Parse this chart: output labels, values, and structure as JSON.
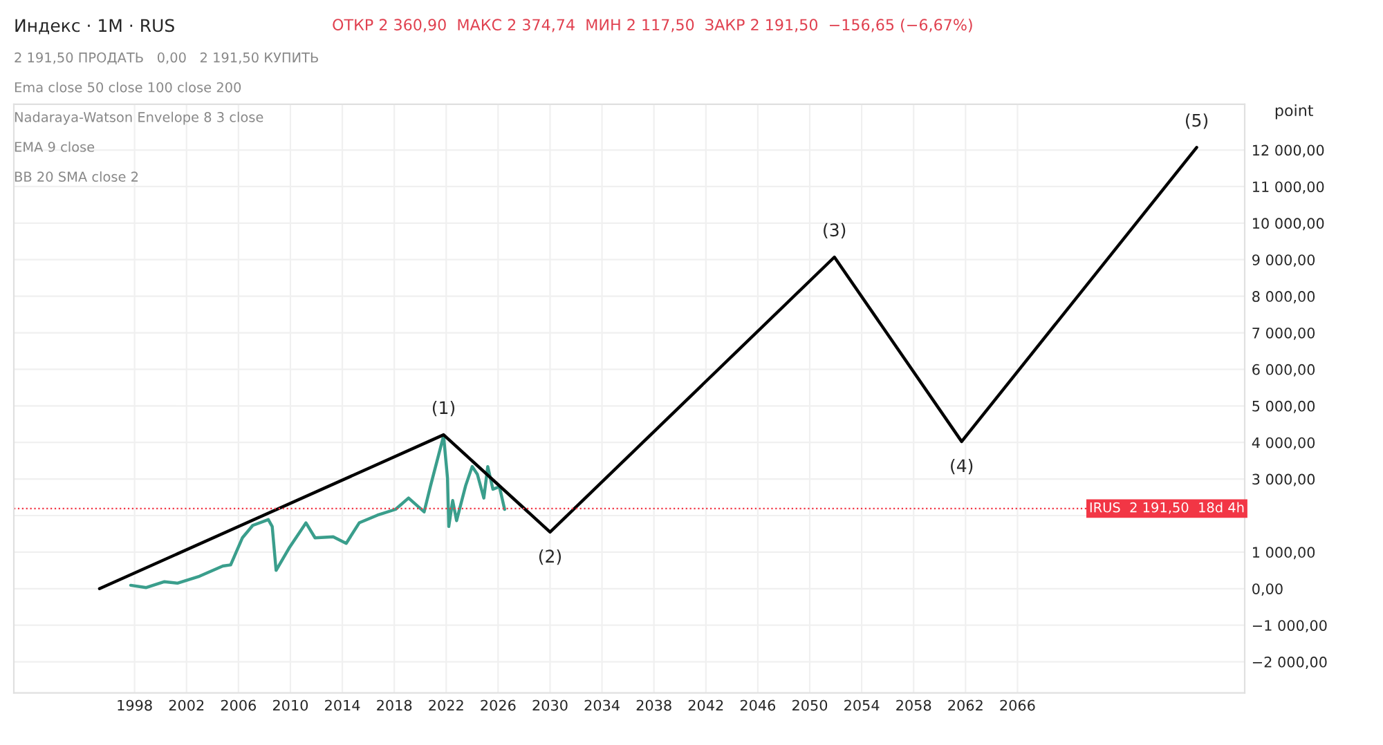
{
  "chart_data": {
    "type": "line",
    "title": "Индекс · 1M · RUS",
    "subtitle": "ОТКР 2 360,90  МАКС 2 374,74  МИН 2 117,50  ЗАКР 2 191,50  −156,65 (−6,67%)",
    "ylabel": "point",
    "annotations": [
      "2 191,50 ПРОДАТЬ   0,00   2 191,50 КУПИТЬ",
      "Ema close 50 close 100 close 200",
      "Nadaraya-Watson Envelope 8 3 close",
      "EMA 9 close",
      "BB 20 SMA close 2",
      {
        "text": "(1)",
        "x": 2021.8,
        "y": 4210
      },
      {
        "text": "(2)",
        "x": 2030.0,
        "y": 1548
      },
      {
        "text": "(3)",
        "x": 2051.9,
        "y": 9070
      },
      {
        "text": "(4)",
        "x": 2061.7,
        "y": 4025
      },
      {
        "text": "(5)",
        "x": 2079.8,
        "y": 12070
      }
    ],
    "series": [
      {
        "color": "#3a9e8c",
        "x": [
          1997.7,
          1998.9,
          2000.3,
          2001.3,
          2003.0,
          2004.8,
          2005.4,
          2006.3,
          2007.1,
          2008.3,
          2008.6,
          2008.9,
          2009.9,
          2011.2,
          2011.9,
          2013.3,
          2014.3,
          2015.3,
          2016.7,
          2018.1,
          2019.1,
          2020.3,
          2020.8,
          2021.8,
          2022.1,
          2022.2,
          2022.5,
          2022.8,
          2023.5,
          2024.0,
          2024.4,
          2024.9,
          2025.2,
          2025.6,
          2026.1,
          2026.5
        ],
        "values": [
          93,
          30,
          190,
          150,
          340,
          620,
          650,
          1390,
          1730,
          1890,
          1700,
          500,
          1110,
          1800,
          1390,
          1420,
          1240,
          1800,
          2010,
          2170,
          2480,
          2100,
          2820,
          4180,
          3030,
          1700,
          2410,
          1860,
          2820,
          3340,
          3130,
          2480,
          3340,
          2720,
          2790,
          2170
        ]
      },
      {
        "color": "#000000",
        "x": [
          1995.3,
          2021.8,
          2030.0,
          2051.9,
          2061.7,
          2079.8
        ],
        "values": [
          0,
          4210,
          1548,
          9070,
          4025,
          12070
        ]
      }
    ],
    "xlim": [
      1988.7,
      2083.5
    ],
    "ylim": [
      -2850,
      13250
    ],
    "xticks": [
      1998,
      2002,
      2006,
      2010,
      2014,
      2018,
      2022,
      2026,
      2030,
      2034,
      2038,
      2042,
      2046,
      2050,
      2054,
      2058,
      2062,
      2066
    ],
    "yticks": [
      {
        "value": -2000,
        "label": "−2 000,00"
      },
      {
        "value": -1000,
        "label": "−1 000,00"
      },
      {
        "value": 0,
        "label": "0,00"
      },
      {
        "value": 1000,
        "label": "1 000,00"
      },
      {
        "value": 2000,
        "label": null
      },
      {
        "value": 3000,
        "label": "3 000,00"
      },
      {
        "value": 4000,
        "label": "4 000,00"
      },
      {
        "value": 5000,
        "label": "5 000,00"
      },
      {
        "value": 6000,
        "label": "6 000,00"
      },
      {
        "value": 7000,
        "label": "7 000,00"
      },
      {
        "value": 8000,
        "label": "8 000,00"
      },
      {
        "value": 9000,
        "label": "9 000,00"
      },
      {
        "value": 10000,
        "label": "10 000,00"
      },
      {
        "value": 11000,
        "label": "11 000,00"
      },
      {
        "value": 12000,
        "label": "12 000,00"
      }
    ],
    "ref_lines": [
      {
        "axis": "y",
        "value": 2191.5,
        "label": "IRUS  2 191,50  18d 4h",
        "color": "#f23645",
        "line_style": "dotted"
      }
    ],
    "grid": true,
    "line_style": "solid"
  }
}
